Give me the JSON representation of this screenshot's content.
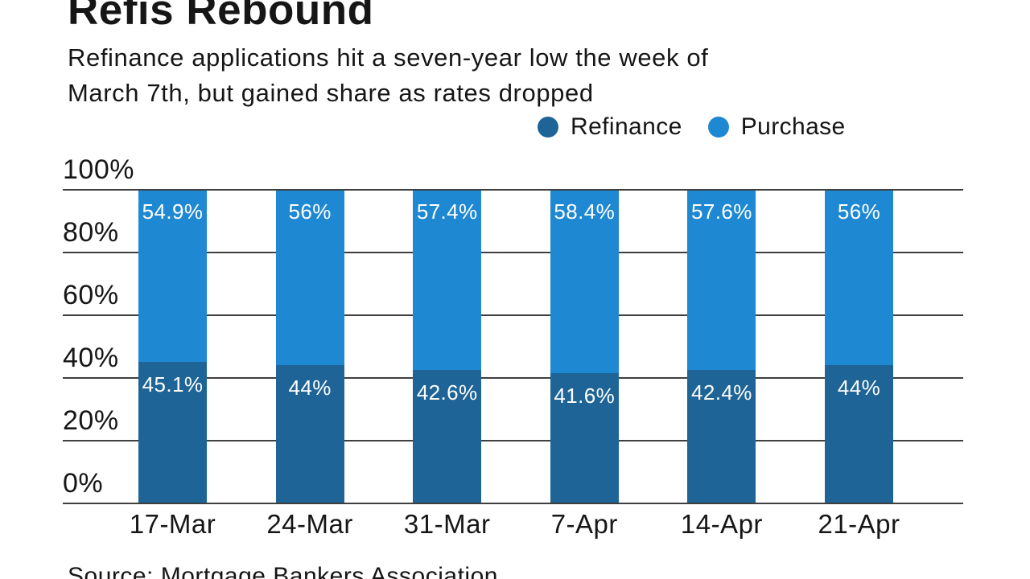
{
  "header": {
    "title": "Refis Rebound",
    "subtitle_line1": "Refinance applications hit a seven-year low the week of",
    "subtitle_line2": "March 7th, but gained share as rates dropped"
  },
  "legend": [
    {
      "label": "Refinance",
      "color": "#1e6496",
      "icon": "circle-swatch"
    },
    {
      "label": "Purchase",
      "color": "#1f88d3",
      "icon": "circle-swatch"
    }
  ],
  "chart_data": {
    "type": "bar",
    "stacked": true,
    "orientation": "vertical",
    "title": "Refis Rebound",
    "xlabel": "",
    "ylabel": "",
    "ylim": [
      0,
      100
    ],
    "grid": true,
    "legend_position": "top-right",
    "categories": [
      "17-Mar",
      "24-Mar",
      "31-Mar",
      "7-Apr",
      "14-Apr",
      "21-Apr"
    ],
    "yticks": [
      {
        "value": 100,
        "label": "100%"
      },
      {
        "value": 80,
        "label": "80%"
      },
      {
        "value": 60,
        "label": "60%"
      },
      {
        "value": 40,
        "label": "40%"
      },
      {
        "value": 20,
        "label": "20%"
      },
      {
        "value": 0,
        "label": "0%"
      }
    ],
    "series": [
      {
        "name": "Refinance",
        "color": "#1e6496",
        "values": [
          45.1,
          44,
          42.6,
          41.6,
          42.4,
          44
        ],
        "labels": [
          "45.1%",
          "44%",
          "42.6%",
          "41.6%",
          "42.4%",
          "44%"
        ]
      },
      {
        "name": "Purchase",
        "color": "#1f88d3",
        "values": [
          54.9,
          56,
          57.4,
          58.4,
          57.6,
          56
        ],
        "labels": [
          "54.9%",
          "56%",
          "57.4%",
          "58.4%",
          "57.6%",
          "56%"
        ]
      }
    ]
  },
  "footer": {
    "source": "Source: Mortgage Bankers Association"
  }
}
